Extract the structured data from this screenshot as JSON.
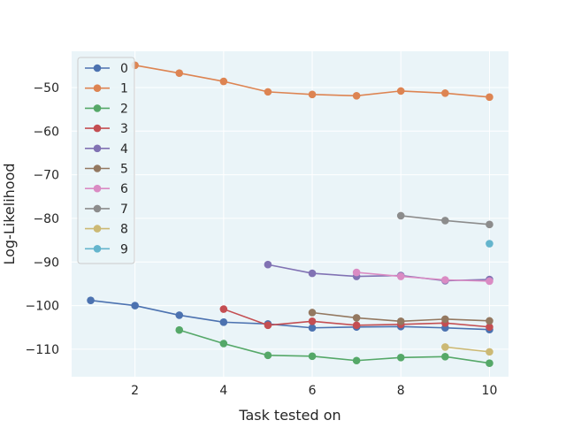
{
  "chart_data": {
    "type": "line",
    "title": "",
    "xlabel": "Task tested on",
    "ylabel": "Log-Likelihood",
    "xlim": [
      0.57,
      10.43
    ],
    "ylim": [
      -116.3,
      -41.7
    ],
    "xticks": [
      2,
      4,
      6,
      8,
      10
    ],
    "yticks": [
      -110,
      -100,
      -90,
      -80,
      -70,
      -60,
      -50
    ],
    "grid": true,
    "legend_position": "top-left",
    "background_color": "#EAF4F8",
    "grid_color": "#FFFFFF",
    "series": [
      {
        "name": "0",
        "color": "#4C72B0",
        "x": [
          1,
          2,
          3,
          4,
          5,
          6,
          7,
          8,
          9,
          10
        ],
        "y": [
          -98.8,
          -100.0,
          -102.2,
          -103.8,
          -104.2,
          -105.1,
          -104.9,
          -104.8,
          -105.1,
          -105.5
        ]
      },
      {
        "name": "1",
        "color": "#DD8452",
        "x": [
          2,
          3,
          4,
          5,
          6,
          7,
          8,
          9,
          10
        ],
        "y": [
          -44.9,
          -46.7,
          -48.6,
          -51.0,
          -51.6,
          -51.9,
          -50.8,
          -51.3,
          -52.2
        ]
      },
      {
        "name": "2",
        "color": "#55A868",
        "x": [
          3,
          4,
          5,
          6,
          7,
          8,
          9,
          10
        ],
        "y": [
          -105.6,
          -108.7,
          -111.4,
          -111.6,
          -112.6,
          -111.9,
          -111.7,
          -113.2
        ]
      },
      {
        "name": "3",
        "color": "#C44E52",
        "x": [
          4,
          5,
          6,
          7,
          8,
          9,
          10
        ],
        "y": [
          -100.8,
          -104.5,
          -103.6,
          -104.5,
          -104.3,
          -104.0,
          -104.9
        ]
      },
      {
        "name": "4",
        "color": "#8172B3",
        "x": [
          5,
          6,
          7,
          8,
          9,
          10
        ],
        "y": [
          -90.6,
          -92.6,
          -93.3,
          -93.1,
          -94.3,
          -94.0
        ]
      },
      {
        "name": "5",
        "color": "#937860",
        "x": [
          6,
          7,
          8,
          9,
          10
        ],
        "y": [
          -101.6,
          -102.8,
          -103.6,
          -103.1,
          -103.5
        ]
      },
      {
        "name": "6",
        "color": "#DA8BC3",
        "x": [
          7,
          8,
          9,
          10
        ],
        "y": [
          -92.4,
          -93.3,
          -94.1,
          -94.4
        ]
      },
      {
        "name": "7",
        "color": "#8C8C8C",
        "x": [
          8,
          9,
          10
        ],
        "y": [
          -79.4,
          -80.5,
          -81.4
        ]
      },
      {
        "name": "8",
        "color": "#CCB974",
        "x": [
          9,
          10
        ],
        "y": [
          -109.5,
          -110.6
        ]
      },
      {
        "name": "9",
        "color": "#64B5CD",
        "x": [
          10
        ],
        "y": [
          -85.8
        ]
      }
    ]
  }
}
